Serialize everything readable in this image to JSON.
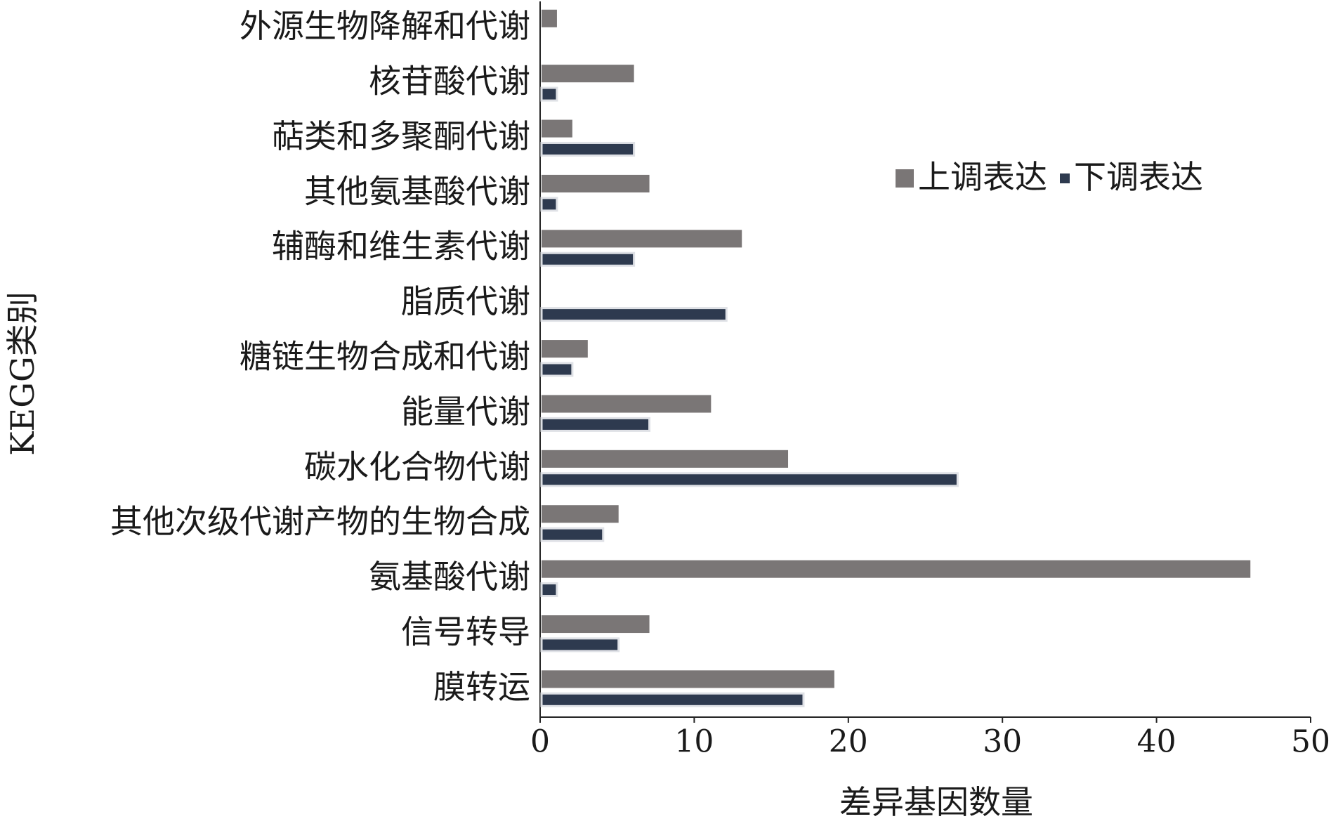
{
  "chart_data": {
    "type": "hbar",
    "x_label": "差异基因数量",
    "y_label": "KEGG类别",
    "categories": [
      "外源生物降解和代谢",
      "核苷酸代谢",
      "萜类和多聚酮代谢",
      "其他氨基酸代谢",
      "辅酶和维生素代谢",
      "脂质代谢",
      "糖链生物合成和代谢",
      "能量代谢",
      "碳水化合物代谢",
      "其他次级代谢产物的生物合成",
      "氨基酸代谢",
      "信号转导",
      "膜转运"
    ],
    "series": [
      {
        "name": "上调表达",
        "color": "#7a7676",
        "values": [
          1,
          6,
          2,
          7,
          13,
          0,
          3,
          11,
          16,
          5,
          46,
          7,
          19
        ]
      },
      {
        "name": "下调表达",
        "color": "#2e3a4f",
        "values": [
          0,
          1,
          6,
          1,
          6,
          12,
          2,
          7,
          27,
          4,
          1,
          5,
          17
        ]
      }
    ],
    "xlim": [
      0,
      50
    ],
    "xticks": [
      0,
      10,
      20,
      30,
      40,
      50
    ],
    "legend": "upper-right"
  }
}
